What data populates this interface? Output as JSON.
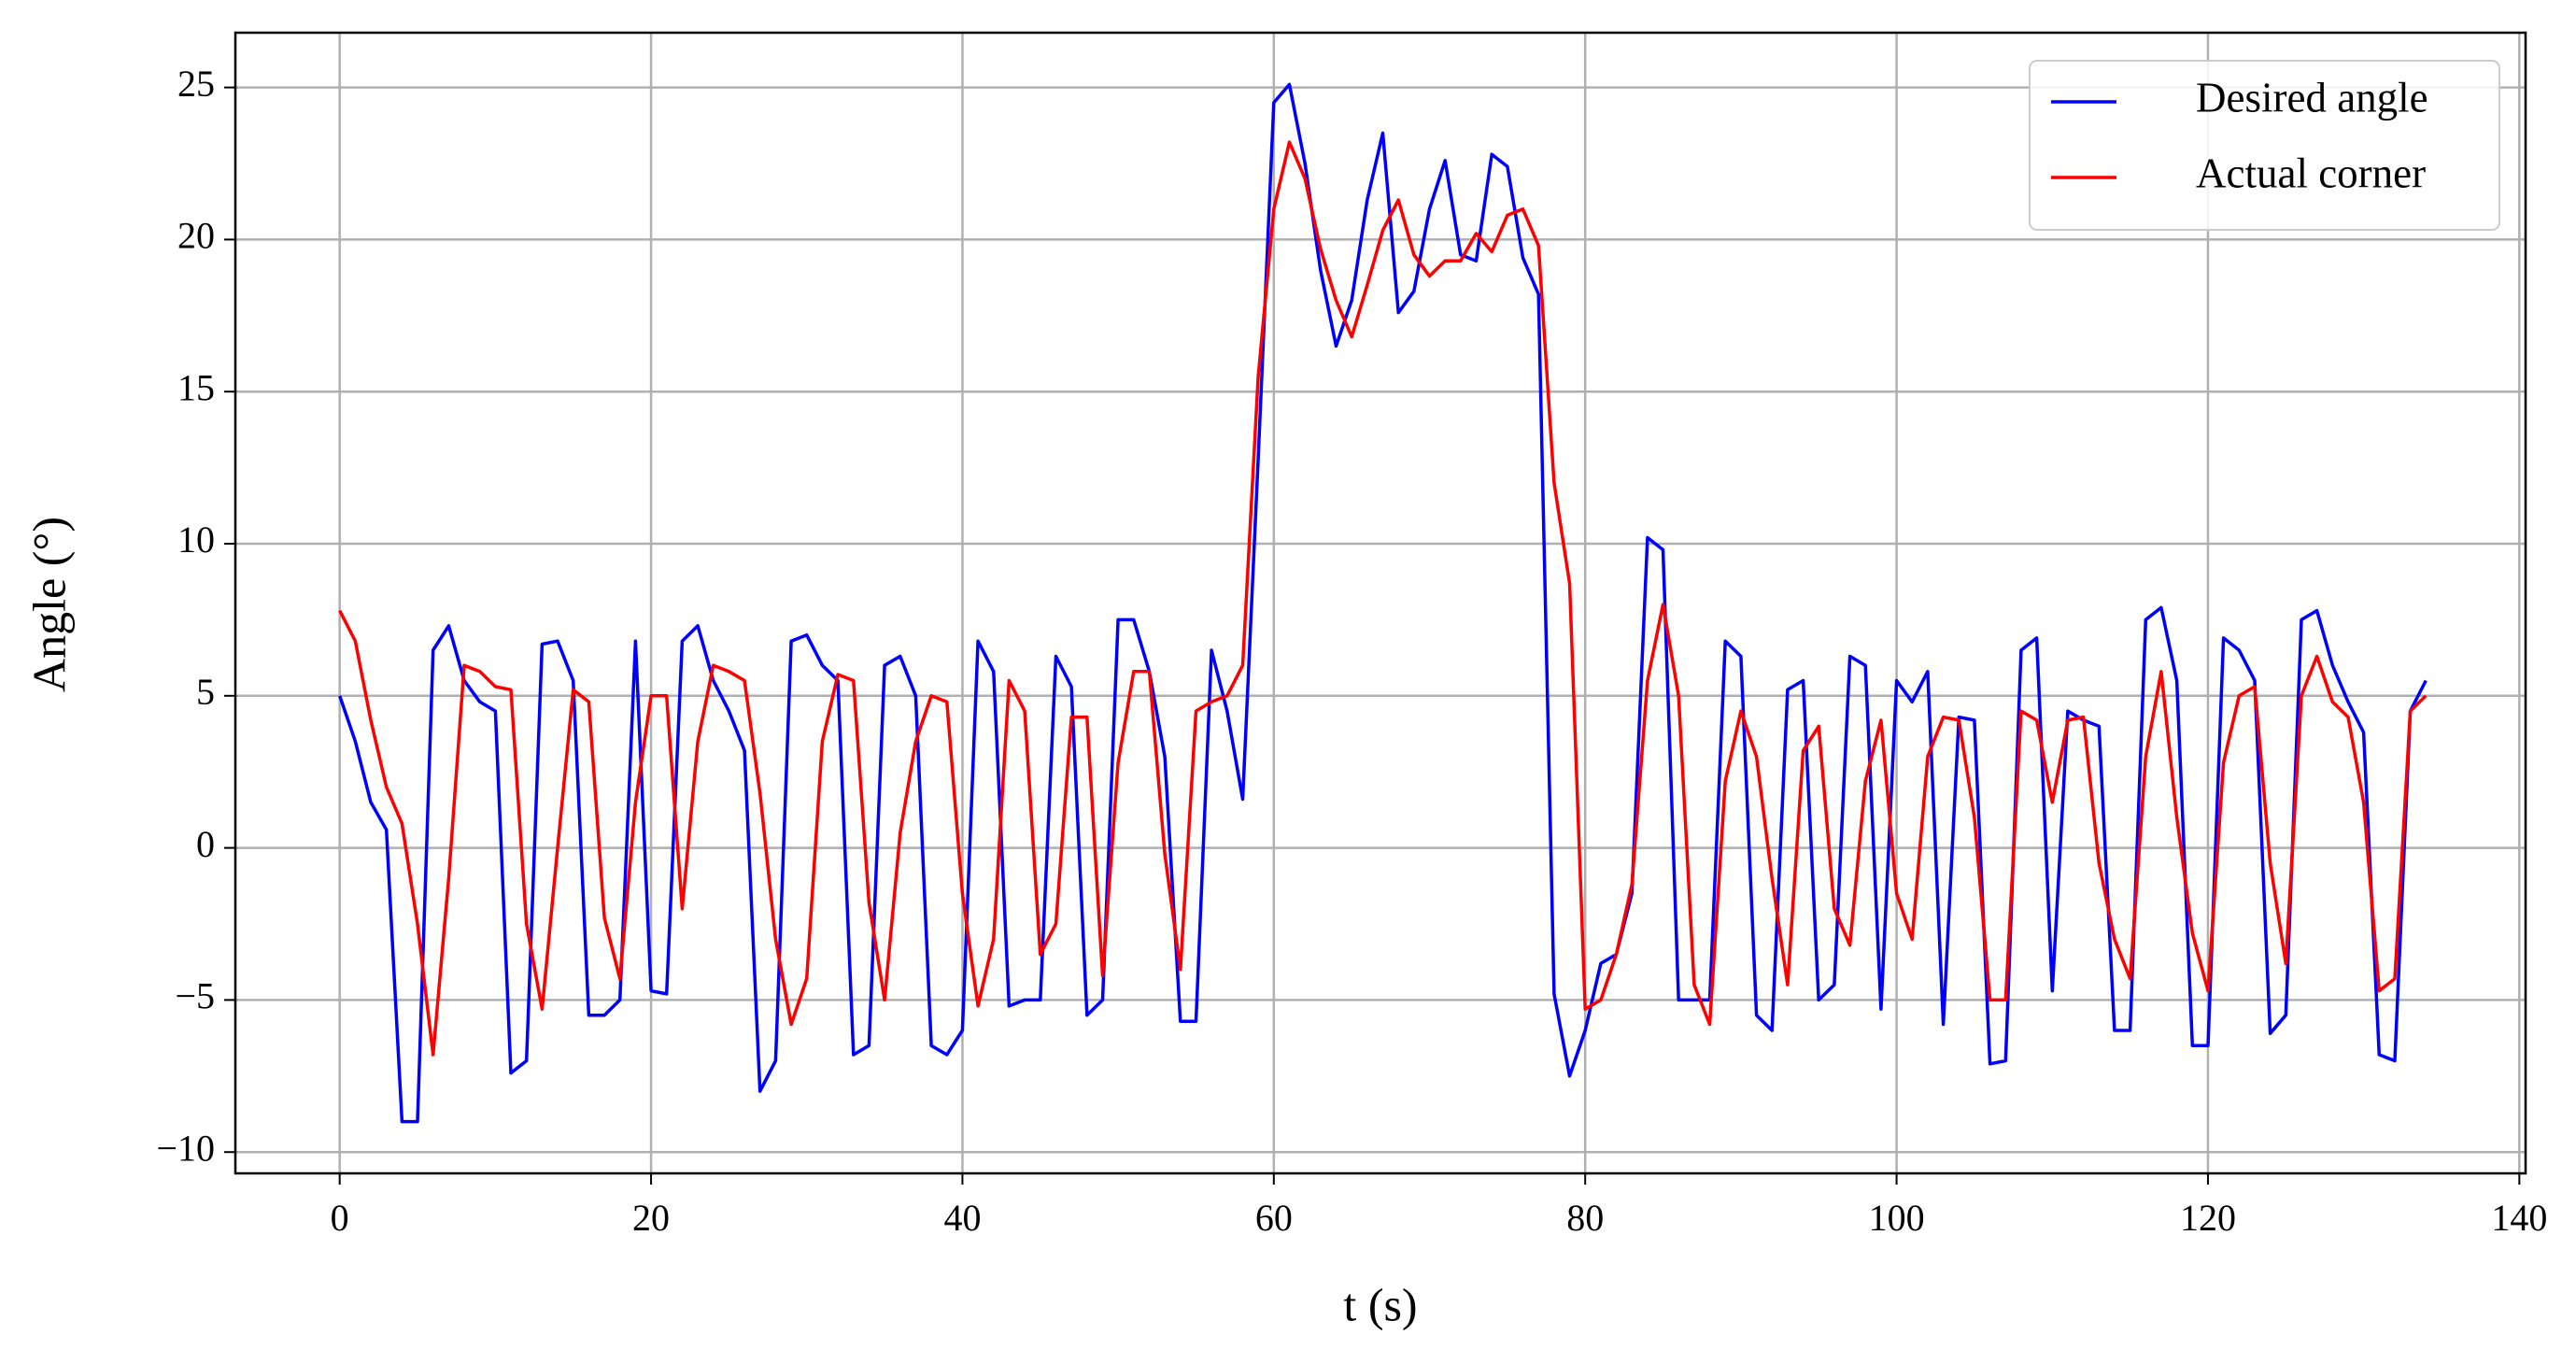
{
  "chart_data": {
    "type": "line",
    "xlabel": "t (s)",
    "ylabel": "Angle (°)",
    "x": [
      0,
      1,
      2,
      3,
      4,
      5,
      6,
      7,
      8,
      9,
      10,
      11,
      12,
      13,
      14,
      15,
      16,
      17,
      18,
      19,
      20,
      21,
      22,
      23,
      24,
      25,
      26,
      27,
      28,
      29,
      30,
      31,
      32,
      33,
      34,
      35,
      36,
      37,
      38,
      39,
      40,
      41,
      42,
      43,
      44,
      45,
      46,
      47,
      48,
      49,
      50,
      51,
      52,
      53,
      54,
      55,
      56,
      57,
      58,
      59,
      60,
      61,
      62,
      63,
      64,
      65,
      66,
      67,
      68,
      69,
      70,
      71,
      72,
      73,
      74,
      75,
      76,
      77,
      78,
      79,
      80,
      81,
      82,
      83,
      84,
      85,
      86,
      87,
      88,
      89,
      90,
      91,
      92,
      93,
      94,
      95,
      96,
      97,
      98,
      99,
      100,
      101,
      102,
      103,
      104,
      105,
      106,
      107,
      108,
      109,
      110,
      111,
      112,
      113,
      114,
      115,
      116,
      117,
      118,
      119,
      120,
      121,
      122,
      123,
      124,
      125,
      126,
      127,
      128,
      129,
      130,
      131,
      132,
      133,
      134
    ],
    "series": [
      {
        "name": "Desired angle",
        "color": "#0000ff",
        "values": [
          5,
          3.5,
          1.5,
          0.6,
          -9,
          -9,
          6.5,
          7.3,
          5.5,
          4.8,
          4.5,
          -7.4,
          -7,
          6.7,
          6.8,
          5.5,
          -5.5,
          -5.5,
          -5,
          6.8,
          -4.7,
          -4.8,
          6.8,
          7.3,
          5.5,
          4.5,
          3.2,
          -8,
          -7,
          6.8,
          7,
          6,
          5.5,
          -6.8,
          -6.5,
          6,
          6.3,
          5,
          -6.5,
          -6.8,
          -6,
          6.8,
          5.8,
          -5.2,
          -5,
          -5,
          6.3,
          5.3,
          -5.5,
          -5,
          7.5,
          7.5,
          5.8,
          3,
          -5.7,
          -5.7,
          6.5,
          4.5,
          1.6,
          12.8,
          24.5,
          25.1,
          22.5,
          19,
          16.5,
          18,
          21.3,
          23.5,
          17.6,
          18.3,
          21,
          22.6,
          19.5,
          19.3,
          22.8,
          22.4,
          19.4,
          18.2,
          -4.8,
          -7.5,
          -6,
          -3.8,
          -3.5,
          -1.5,
          10.2,
          9.8,
          -5,
          -5,
          -5,
          6.8,
          6.3,
          -5.5,
          -6,
          5.2,
          5.5,
          -5,
          -4.5,
          6.3,
          6,
          -5.3,
          5.5,
          4.8,
          5.8,
          -5.8,
          4.3,
          4.2,
          -7.1,
          -7,
          6.5,
          6.9,
          -4.7,
          4.5,
          4.2,
          4,
          -6,
          -6,
          7.5,
          7.9,
          5.5,
          -6.5,
          -6.5,
          6.9,
          6.5,
          5.5,
          -6.1,
          -5.5,
          7.5,
          7.8,
          6,
          4.8,
          3.8,
          -6.8,
          -7,
          4.5,
          5.5
        ]
      },
      {
        "name": "Actual corner",
        "color": "#ff0000",
        "values": [
          7.8,
          6.8,
          4.2,
          2,
          0.8,
          -2.5,
          -6.8,
          -1,
          6,
          5.8,
          5.3,
          5.2,
          -2.5,
          -5.3,
          0,
          5.2,
          4.8,
          -2.3,
          -4.3,
          1.5,
          5,
          5,
          -2,
          3.5,
          6,
          5.8,
          5.5,
          1.8,
          -3,
          -5.8,
          -4.3,
          3.5,
          5.7,
          5.5,
          -1.8,
          -5,
          0.5,
          3.5,
          5,
          4.8,
          -1.5,
          -5.2,
          -3,
          5.5,
          4.5,
          -3.5,
          -2.5,
          4.3,
          4.3,
          -4.2,
          2.8,
          5.8,
          5.8,
          -0.2,
          -4,
          4.5,
          4.8,
          5,
          6,
          15.5,
          21,
          23.2,
          22,
          19.7,
          18,
          16.8,
          18.5,
          20.3,
          21.3,
          19.5,
          18.8,
          19.3,
          19.3,
          20.2,
          19.6,
          20.8,
          21,
          19.8,
          12,
          8.7,
          -5.3,
          -5,
          -3.5,
          -1.2,
          5.5,
          8,
          5,
          -4.5,
          -5.8,
          2.2,
          4.5,
          3,
          -1,
          -4.5,
          3.2,
          4,
          -2,
          -3.2,
          2.2,
          4.2,
          -1.5,
          -3,
          3,
          4.3,
          4.2,
          1,
          -5,
          -5,
          4.5,
          4.2,
          1.5,
          4.2,
          4.3,
          -0.5,
          -3,
          -4.3,
          3,
          5.8,
          1,
          -2.8,
          -4.7,
          2.8,
          5,
          5.3,
          -0.5,
          -3.8,
          5,
          6.3,
          4.8,
          4.3,
          1.5,
          -4.7,
          -4.3,
          4.5,
          5
        ]
      }
    ],
    "xlim": [
      -6.7,
      140.4
    ],
    "ylim": [
      -10.7,
      26.8
    ],
    "xticks": [
      0,
      20,
      40,
      60,
      80,
      100,
      120,
      140
    ],
    "yticks": [
      {
        "value": -10,
        "label": "−10"
      },
      {
        "value": -5,
        "label": "−5"
      },
      0,
      5,
      10,
      15,
      20,
      25
    ],
    "grid": true,
    "legend": "upper right"
  }
}
